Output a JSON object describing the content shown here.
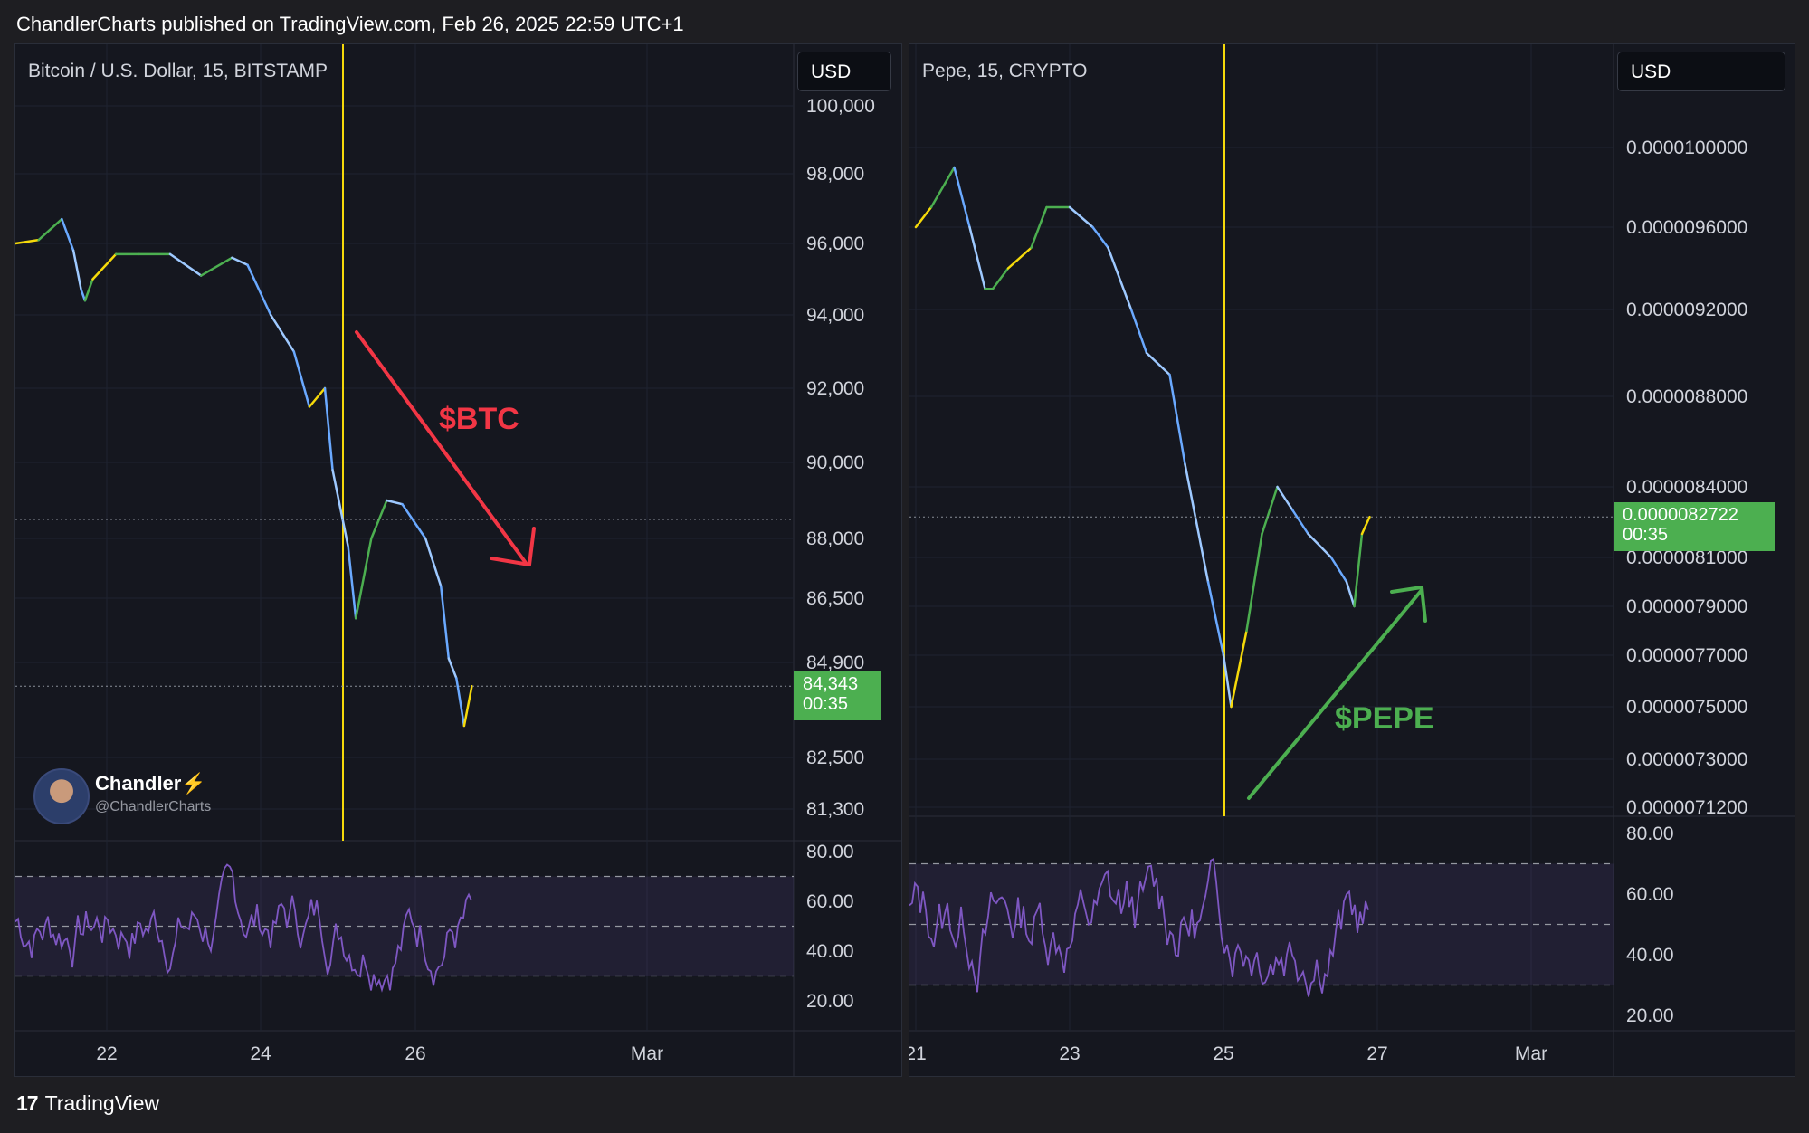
{
  "header": {
    "text": "ChandlerCharts published on TradingView.com, Feb 26, 2025 22:59 UTC+1"
  },
  "footer": {
    "logo": "17",
    "brand": "TradingView"
  },
  "avatar": {
    "name": "Chandler⚡",
    "handle": "@ChandlerCharts"
  },
  "colors": {
    "up": "#4caf50",
    "annotation_down": "#f23645",
    "annotation_up": "#4caf50",
    "rsi": "#7e57c2",
    "marker": "#f5d90a"
  },
  "chart_data": [
    {
      "type": "line",
      "title": "Bitcoin / U.S. Dollar, 15, BITSTAMP",
      "currency": "USD",
      "y_ticks": [
        "100,000",
        "98,000",
        "96,000",
        "94,000",
        "92,000",
        "90,000",
        "88,000",
        "86,500",
        "84,900",
        "82,500",
        "81,300"
      ],
      "x_ticks": [
        "22",
        "24",
        "26",
        "Mar"
      ],
      "last_price": "84,343",
      "countdown": "00:35",
      "annotation": "$BTC",
      "x": [
        21.0,
        21.3,
        21.6,
        21.75,
        21.85,
        21.9,
        22.0,
        22.3,
        22.6,
        23.0,
        23.4,
        23.8,
        24.0,
        24.3,
        24.6,
        24.8,
        25.0,
        25.1,
        25.3,
        25.4,
        25.6,
        25.8,
        26.0,
        26.3,
        26.5,
        26.6,
        26.7,
        26.8,
        26.9
      ],
      "y": [
        96000,
        96100,
        96700,
        95800,
        94700,
        94400,
        95000,
        95700,
        95700,
        95700,
        95100,
        95600,
        95400,
        94000,
        93000,
        91500,
        92000,
        89800,
        87800,
        86000,
        88000,
        89000,
        88900,
        88000,
        86800,
        85000,
        84500,
        83300,
        84300
      ],
      "rsi": {
        "y_ticks": [
          "80.00",
          "60.00",
          "40.00",
          "20.00"
        ],
        "upper": 70,
        "middle": 50,
        "lower": 30
      }
    },
    {
      "type": "line",
      "title": "Pepe, 15, CRYPTO",
      "currency": "USD",
      "y_ticks": [
        "0.0000100000",
        "0.0000096000",
        "0.0000092000",
        "0.0000088000",
        "0.0000084000",
        "0.0000081000",
        "0.0000079000",
        "0.0000077000",
        "0.0000075000",
        "0.0000073000",
        "0.0000071200"
      ],
      "x_ticks": [
        "21",
        "23",
        "25",
        "27",
        "Mar"
      ],
      "last_price": "0.0000082722",
      "countdown": "00:35",
      "annotation": "$PEPE",
      "x": [
        21.0,
        21.2,
        21.5,
        21.7,
        21.9,
        22.0,
        22.2,
        22.5,
        22.7,
        23.0,
        23.3,
        23.5,
        23.8,
        24.0,
        24.3,
        24.5,
        24.8,
        25.0,
        25.1,
        25.3,
        25.5,
        25.7,
        25.9,
        26.1,
        26.4,
        26.6,
        26.7,
        26.8,
        26.9
      ],
      "y": [
        9.6e-06,
        9.7e-06,
        9.9e-06,
        9.6e-06,
        9.3e-06,
        9.3e-06,
        9.4e-06,
        9.5e-06,
        9.7e-06,
        9.7e-06,
        9.6e-06,
        9.5e-06,
        9.2e-06,
        9e-06,
        8.9e-06,
        8.5e-06,
        8e-06,
        7.7e-06,
        7.5e-06,
        7.8e-06,
        8.2e-06,
        8.4e-06,
        8.3e-06,
        8.2e-06,
        8.1e-06,
        8e-06,
        7.9e-06,
        8.2e-06,
        8.2722e-06
      ],
      "rsi": {
        "y_ticks": [
          "80.00",
          "60.00",
          "40.00",
          "20.00"
        ],
        "upper": 70,
        "middle": 50,
        "lower": 30
      }
    }
  ]
}
